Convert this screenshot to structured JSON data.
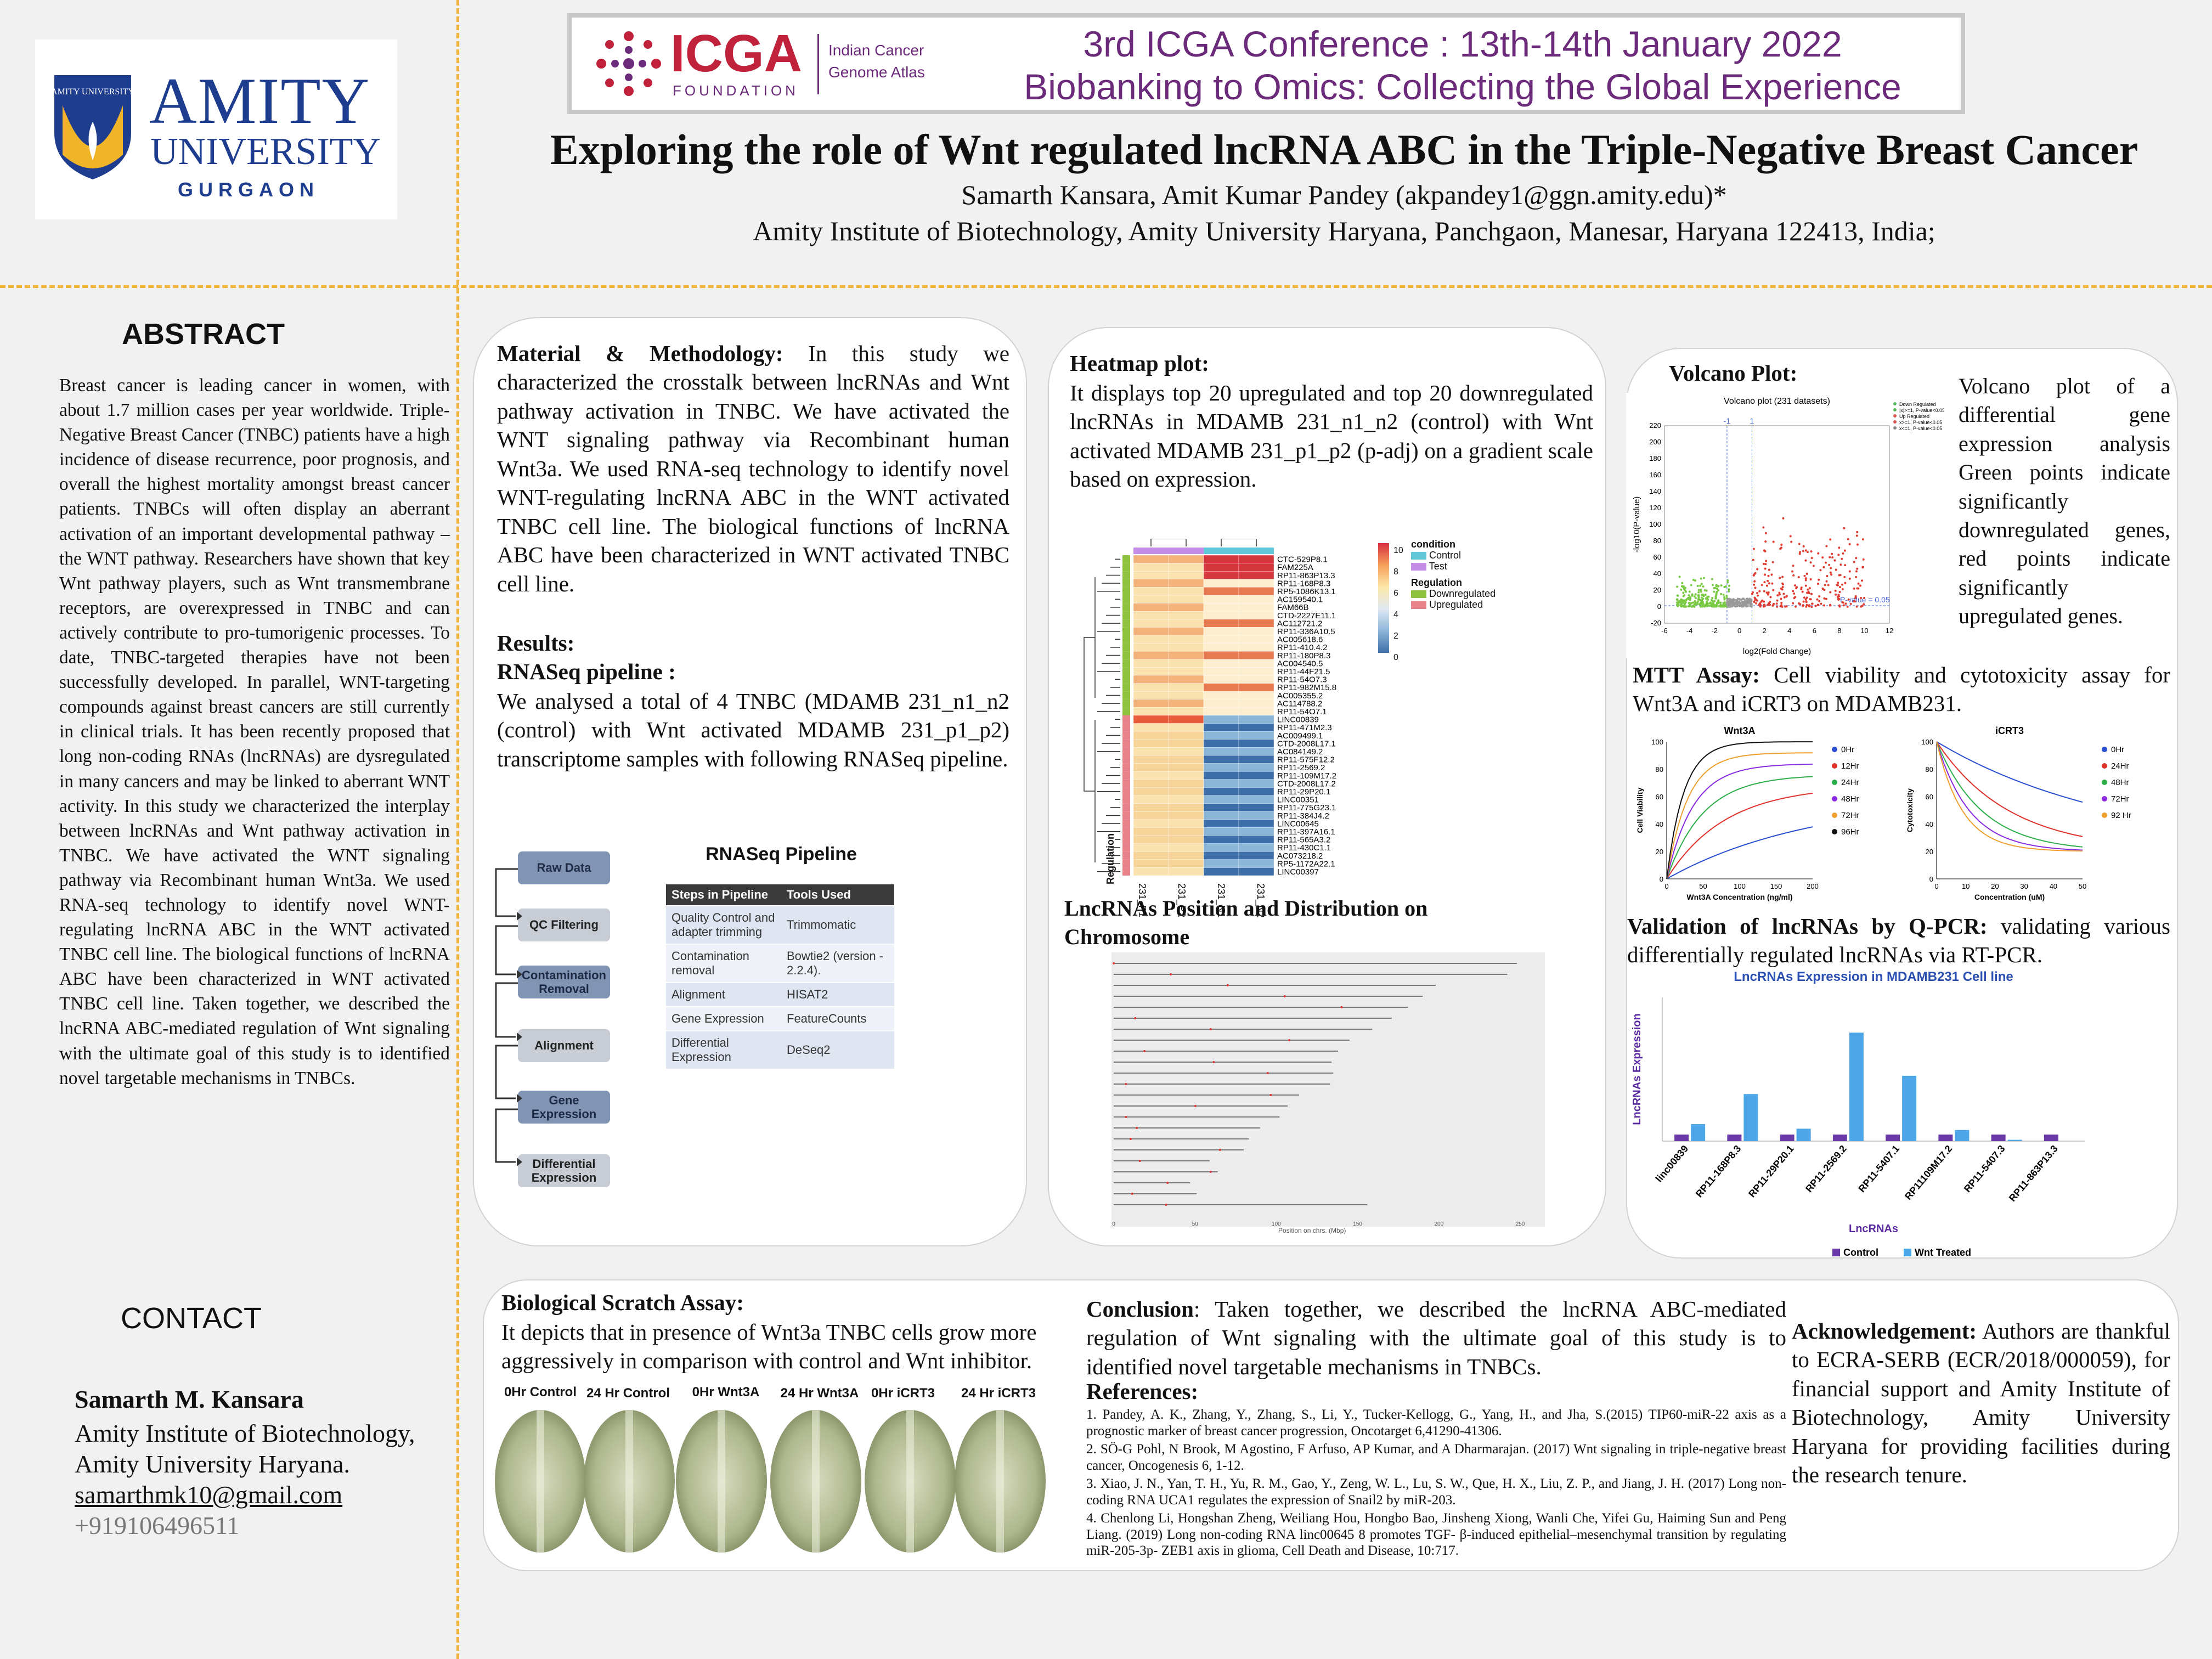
{
  "header": {
    "logo": {
      "amity": "AMITY",
      "university": "UNIVERSITY",
      "campus": "GURGAON",
      "crest_text": "AMITY UNIVERSITY"
    },
    "icga": {
      "name": "ICGA",
      "foundation": "FOUNDATION",
      "atlas_line1": "Indian Cancer",
      "atlas_line2": "Genome Atlas"
    },
    "conference_line1": "3rd ICGA Conference : 13th-14th January 2022",
    "conference_line2": "Biobanking to Omics: Collecting the Global Experience",
    "title": "Exploring the role of Wnt regulated lncRNA ABC in the Triple-Negative Breast Cancer",
    "authors": "Samarth Kansara, Amit Kumar Pandey (akpandey1@ggn.amity.edu)*",
    "affiliation": "Amity Institute of Biotechnology, Amity University Haryana, Panchgaon, Manesar, Haryana 122413, India;"
  },
  "abstract": {
    "heading": "ABSTRACT",
    "text": "Breast cancer is leading cancer in women, with about 1.7 million cases per year worldwide. Triple-Negative Breast Cancer (TNBC) patients have a high incidence of disease recurrence, poor prognosis, and overall the highest mortality amongst breast cancer patients. TNBCs will often display an aberrant activation of an important developmental pathway – the WNT pathway. Researchers have shown that key Wnt pathway players, such as Wnt transmembrane receptors, are overexpressed in TNBC and can actively contribute to pro-tumorigenic processes. To date, TNBC-targeted therapies have not been successfully developed. In parallel, WNT-targeting compounds against breast cancers are still currently in clinical trials. It has been recently proposed that long non-coding RNAs (lncRNAs) are dysregulated in many cancers and may be linked to aberrant WNT activity. In this study we characterized the interplay between lncRNAs and Wnt pathway activation in TNBC. We have activated the WNT signaling pathway via Recombinant human Wnt3a. We used RNA-seq technology to identify novel WNT-regulating lncRNA ABC in the WNT activated TNBC cell line. The biological functions of lncRNA ABC have been characterized in WNT activated TNBC cell line. Taken together, we described the lncRNA ABC-mediated regulation of Wnt signaling with the ultimate goal of this study is to identified novel targetable mechanisms in TNBCs."
  },
  "contact": {
    "heading": "CONTACT",
    "name": "Samarth M. Kansara",
    "line1": "Amity Institute of Biotechnology,",
    "line2": "Amity University Haryana.",
    "email": "samarthmk10@gmail.com",
    "phone": "+919106496511"
  },
  "methods": {
    "heading": "Material & Methodology:",
    "text": "In this study we characterized the crosstalk between lncRNAs and Wnt pathway activation in TNBC. We have activated the WNT signaling pathway via Recombinant human Wnt3a. We used RNA-seq technology to identify novel WNT-regulating lncRNA ABC in the WNT activated TNBC cell line. The biological functions of lncRNA ABC have been characterized in WNT activated TNBC cell line.",
    "results_heading": "Results:",
    "pipeline_heading": "RNASeq pipeline :",
    "pipeline_text": "We analysed a total of 4 TNBC (MDAMB 231_n1_n2 (control) with Wnt activated MDAMB 231_p1_p2) transcriptome samples with following RNASeq pipeline."
  },
  "pipeline": {
    "title": "RNASeq Pipeline",
    "steps": [
      "Raw Data",
      "QC Filtering",
      "Contamination Removal",
      "Alignment",
      "Gene Expression",
      "Differential Expression"
    ],
    "table_headers": [
      "Steps in Pipeline",
      "Tools Used"
    ],
    "table_rows": [
      [
        "Quality Control and adapter trimming",
        "Trimmomatic"
      ],
      [
        "Contamination removal",
        "Bowtie2 (version - 2.2.4)."
      ],
      [
        "Alignment",
        "HISAT2"
      ],
      [
        "Gene Expression",
        "FeatureCounts"
      ],
      [
        "Differential Expression",
        "DeSeq2"
      ]
    ]
  },
  "heatmap": {
    "heading": "Heatmap plot:",
    "text": "It displays top 20 upregulated and top 20 downregulated lncRNAs in MDAMB 231_n1_n2 (control) with Wnt activated MDAMB 231_p1_p2 (p-adj) on a gradient scale based on expression.",
    "genes": [
      "CTC-529P8.1",
      "FAM225A",
      "RP11-863P13.3",
      "RP11-168P8.3",
      "RP5-1086K13.1",
      "AC159540.1",
      "FAM66B",
      "CTD-2227E11.1",
      "AC112721.2",
      "RP11-336A10.5",
      "AC005618.6",
      "RP11-410.4.2",
      "RP11-180P8.3",
      "AC004540.5",
      "RP11-44F21.5",
      "RP11-54O7.3",
      "RP11-982M15.8",
      "AC005355.2",
      "AC114788.2",
      "RP11-54O7.1",
      "LINC00839",
      "RP11-471M2.3",
      "AC009499.1",
      "CTD-2008L17.1",
      "AC084149.2",
      "RP11-575F12.2",
      "RP11-2569.2",
      "RP11-109M17.2",
      "CTD-2008L17.2",
      "RP11-29P20.1",
      "LINC00351",
      "RP11-775G23.1",
      "RP11-384J4.2",
      "LINC00645",
      "RP11-397A16.1",
      "RP11-565A3.2",
      "RP11-430C1.1",
      "AC073218.2",
      "RP5-1172A22.1",
      "LINC00397"
    ],
    "columns": [
      "231_P1",
      "231_P2",
      "231_N1",
      "231_N2"
    ],
    "row_label": "Regulation",
    "legend_condition": "condition",
    "legend_condition_items": [
      "Control",
      "Test"
    ],
    "legend_regulation": "Regulation",
    "legend_regulation_items": [
      "Downregulated",
      "Upregulated"
    ],
    "scale_ticks": [
      "10",
      "8",
      "6",
      "4",
      "2",
      "0"
    ]
  },
  "chromosome": {
    "heading": "LncRNAs Position and Distribution on Chromosome",
    "x_label": "Position on chrs. (Mbp)",
    "x_ticks": [
      "0",
      "50",
      "100",
      "150",
      "200",
      "250"
    ]
  },
  "volcano": {
    "heading": "Volcano Plot:",
    "description": "Volcano plot of a differential gene expression analysis Green points indicate significantly downregulated genes, red points indicate significantly upregulated genes.",
    "chart_title": "Volcano plot (231 datasets)",
    "x_label": "log2(Fold Change)",
    "y_label": "-log10(P-value)",
    "x_ticks": [
      "-6",
      "-4",
      "-2",
      "0",
      "2",
      "4",
      "6",
      "8",
      "10",
      "12"
    ],
    "y_ticks": [
      "220",
      "200",
      "180",
      "160",
      "140",
      "120",
      "100",
      "80",
      "60",
      "40",
      "20",
      "0",
      "-20"
    ],
    "threshold_label": "P-value = 0.05",
    "fc_labels": [
      "-1",
      "1"
    ],
    "legend": [
      "Down Regulated",
      "|x|>=1, P-value<0.05",
      "Up Regulated",
      "x>=1, P-value<0.05",
      "x<=1, P-value<0.05"
    ]
  },
  "mtt": {
    "heading": "MTT Assay:",
    "text": "Cell viability and cytotoxicity assay for Wnt3A and iCRT3 on MDAMB231.",
    "chart1": {
      "title": "Wnt3A",
      "ylabel": "Cell Viability",
      "xlabel": "Wnt3A Concentration (ng/ml)",
      "x_ticks": [
        "0",
        "50",
        "100",
        "150",
        "200"
      ],
      "y_ticks": [
        "100",
        "80",
        "60",
        "40",
        "20",
        "0"
      ],
      "legend": [
        "0Hr",
        "12Hr",
        "24Hr",
        "48Hr",
        "72Hr",
        "96Hr"
      ]
    },
    "chart2": {
      "title": "iCRT3",
      "ylabel": "Cytotoxicity",
      "xlabel": "Concentration (uM)",
      "x_ticks": [
        "0",
        "10",
        "20",
        "30",
        "40",
        "50"
      ],
      "y_ticks": [
        "100",
        "80",
        "60",
        "40",
        "20",
        "0"
      ],
      "legend": [
        "0Hr",
        "24Hr",
        "48Hr",
        "72Hr",
        "92 Hr"
      ]
    }
  },
  "qpcr": {
    "heading": "Validation of lncRNAs by Q-PCR:",
    "text": "validating various differentially regulated lncRNAs via RT-PCR."
  },
  "chart_data": {
    "type": "bar",
    "title": "LncRNAs Expression in MDAMB231 Cell line",
    "xlabel": "LncRNAs",
    "ylabel": "LncRNAs Expression",
    "categories": [
      "linc00839",
      "RP11-168P8.3",
      "RP11-29P20.1",
      "RP11-2569.2",
      "RP11-5407.1",
      "RP11109M17.2",
      "RP11-5407.3",
      "RP11-863P13.3"
    ],
    "ylim": [
      0,
      22
    ],
    "grid": false,
    "legend_position": "bottom",
    "series": [
      {
        "name": "Control",
        "color": "#6a3aa8",
        "values": [
          1,
          1,
          1,
          1,
          1,
          1,
          1,
          1
        ]
      },
      {
        "name": "Wnt Treated",
        "color": "#4da6e8",
        "values": [
          2.6,
          7.2,
          1.9,
          16.6,
          10.0,
          1.7,
          0.2,
          0.0
        ]
      }
    ]
  },
  "scratch": {
    "heading": "Biological Scratch Assay:",
    "text": "It depicts that in presence of Wnt3a TNBC cells grow more aggressively in comparison with control and Wnt inhibitor.",
    "labels": [
      "0Hr Control",
      "24 Hr Control",
      "0Hr Wnt3A",
      "24 Hr Wnt3A",
      "0Hr iCRT3",
      "24 Hr iCRT3"
    ]
  },
  "conclusion": {
    "heading": "Conclusion",
    "text": ": Taken together, we described the lncRNA ABC-mediated regulation of Wnt signaling with the ultimate goal of this study is to identified novel targetable mechanisms in TNBCs.",
    "refs_heading": "References:",
    "refs": [
      "1. Pandey, A. K., Zhang, Y., Zhang, S., Li, Y., Tucker-Kellogg, G., Yang, H., and Jha, S.(2015) TIP60-miR-22 axis as a prognostic marker of breast cancer progression, Oncotarget 6,41290-41306.",
      "2. SÖ-G Pohl, N Brook, M Agostino, F Arfuso, AP Kumar, and A Dharmarajan. (2017) Wnt signaling in triple-negative breast cancer, Oncogenesis 6, 1-12.",
      "3. Xiao, J. N., Yan, T. H., Yu, R. M., Gao, Y., Zeng, W. L., Lu, S. W., Que, H. X., Liu, Z. P., and Jiang, J. H. (2017) Long non-coding RNA UCA1 regulates the expression of Snail2 by miR-203.",
      "4. Chenlong Li, Hongshan Zheng, Weiliang Hou, Hongbo Bao, Jinsheng Xiong, Wanli Che, Yifei Gu, Haiming Sun and Peng Liang. (2019) Long non-coding RNA linc00645 8 promotes TGF- β-induced epithelial–mesenchymal transition by regulating miR-205-3p- ZEB1 axis in glioma, Cell Death and Disease, 10:717."
    ]
  },
  "acknowledgement": {
    "heading": "Acknowledgement:",
    "text": "Authors are thankful to ECRA-SERB (ECR/2018/000059), for financial support and Amity Institute of Biotechnology, Amity University Haryana for providing facilities during the research tenure."
  },
  "colors": {
    "accent_dash": "#f0b43a",
    "amity_blue": "#1e3d8f",
    "amity_gold": "#f0b429",
    "icga_purple": "#6b2a7a",
    "icga_red": "#c0223c"
  }
}
